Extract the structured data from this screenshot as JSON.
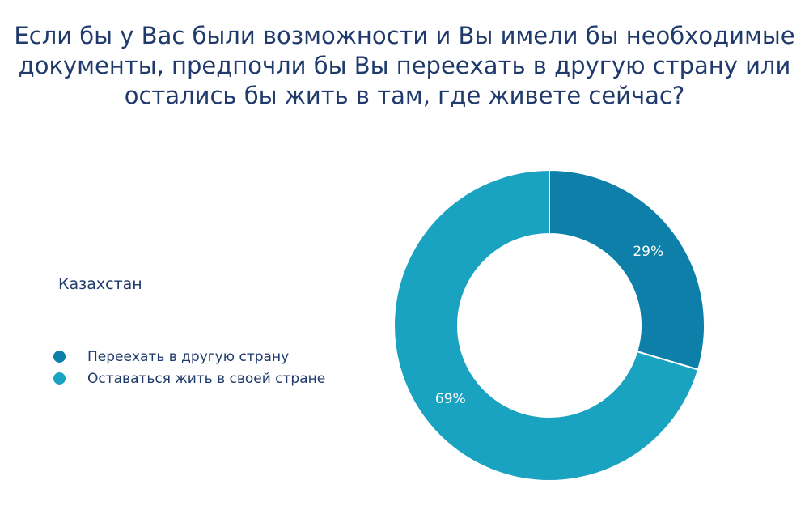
{
  "chart_data": {
    "type": "pie",
    "title_lines": [
      "Если бы у Вас были возможности и Вы имели бы необходимые",
      "документы, предпочли бы Вы переехать в другую страну или",
      "остались бы жить в там, где живете сейчас?"
    ],
    "region": "Казахстан",
    "legend_placement": "left",
    "series": [
      {
        "name": "Переехать в другую страну",
        "value": 29,
        "label": "29%",
        "color": "#0e7fa9"
      },
      {
        "name": "Оставаться жить в своей стране",
        "value": 69,
        "label": "69%",
        "color": "#1aa3c0"
      }
    ]
  }
}
